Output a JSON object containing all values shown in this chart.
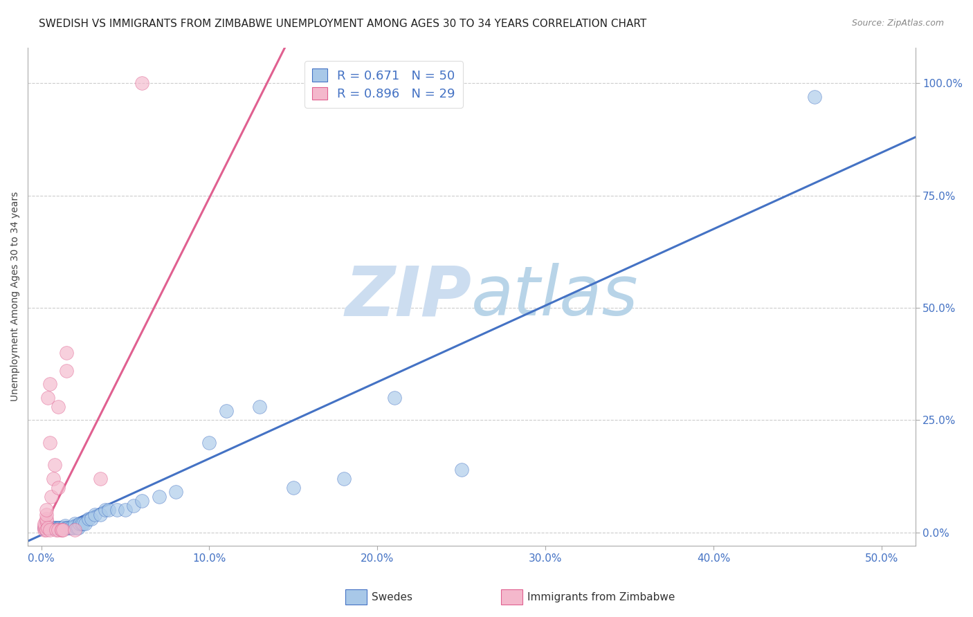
{
  "title": "SWEDISH VS IMMIGRANTS FROM ZIMBABWE UNEMPLOYMENT AMONG AGES 30 TO 34 YEARS CORRELATION CHART",
  "source": "Source: ZipAtlas.com",
  "xlabel_ticks": [
    0.0,
    0.1,
    0.2,
    0.3,
    0.4,
    0.5
  ],
  "ylabel_ticks": [
    0.0,
    0.25,
    0.5,
    0.75,
    1.0
  ],
  "xlabel_labels": [
    "0.0%",
    "10.0%",
    "20.0%",
    "30.0%",
    "40.0%",
    "50.0%"
  ],
  "ylabel_labels": [
    "0.0%",
    "25.0%",
    "50.0%",
    "75.0%",
    "100.0%"
  ],
  "ylabel_text": "Unemployment Among Ages 30 to 34 years",
  "legend_blue_R": "R = 0.671",
  "legend_blue_N": "N = 50",
  "legend_pink_R": "R = 0.896",
  "legend_pink_N": "N = 29",
  "legend_blue_label": "Swedes",
  "legend_pink_label": "Immigrants from Zimbabwe",
  "blue_color": "#a8c8e8",
  "pink_color": "#f4b8cc",
  "blue_line_color": "#4472c4",
  "pink_line_color": "#e06090",
  "tick_color": "#4472c4",
  "watermark_zip": "ZIP",
  "watermark_atlas": "atlas",
  "watermark_color": "#ddeeff",
  "blue_scatter_x": [
    0.002,
    0.003,
    0.004,
    0.005,
    0.005,
    0.006,
    0.007,
    0.008,
    0.008,
    0.009,
    0.01,
    0.01,
    0.011,
    0.011,
    0.012,
    0.013,
    0.014,
    0.015,
    0.015,
    0.016,
    0.017,
    0.018,
    0.019,
    0.02,
    0.021,
    0.022,
    0.023,
    0.024,
    0.025,
    0.026,
    0.028,
    0.03,
    0.032,
    0.035,
    0.038,
    0.04,
    0.045,
    0.05,
    0.055,
    0.06,
    0.07,
    0.08,
    0.1,
    0.11,
    0.13,
    0.15,
    0.18,
    0.21,
    0.25,
    0.46
  ],
  "blue_scatter_y": [
    0.01,
    0.01,
    0.01,
    0.01,
    0.01,
    0.01,
    0.01,
    0.01,
    0.01,
    0.01,
    0.01,
    0.01,
    0.01,
    0.01,
    0.01,
    0.01,
    0.015,
    0.01,
    0.01,
    0.01,
    0.01,
    0.01,
    0.01,
    0.02,
    0.01,
    0.01,
    0.02,
    0.02,
    0.02,
    0.02,
    0.03,
    0.03,
    0.04,
    0.04,
    0.05,
    0.05,
    0.05,
    0.05,
    0.06,
    0.07,
    0.08,
    0.09,
    0.2,
    0.27,
    0.28,
    0.1,
    0.12,
    0.3,
    0.14,
    0.97
  ],
  "pink_scatter_x": [
    0.002,
    0.002,
    0.002,
    0.002,
    0.003,
    0.003,
    0.003,
    0.003,
    0.003,
    0.004,
    0.004,
    0.005,
    0.005,
    0.005,
    0.006,
    0.007,
    0.008,
    0.009,
    0.01,
    0.01,
    0.01,
    0.012,
    0.012,
    0.013,
    0.015,
    0.015,
    0.02,
    0.035,
    0.06
  ],
  "pink_scatter_y": [
    0.005,
    0.01,
    0.015,
    0.02,
    0.025,
    0.03,
    0.04,
    0.05,
    0.005,
    0.01,
    0.3,
    0.33,
    0.2,
    0.005,
    0.08,
    0.12,
    0.15,
    0.005,
    0.1,
    0.28,
    0.005,
    0.005,
    0.005,
    0.005,
    0.36,
    0.4,
    0.005,
    0.12,
    1.0
  ],
  "blue_line_x": [
    -0.02,
    0.52
  ],
  "blue_line_y": [
    -0.04,
    0.88
  ],
  "pink_line_x": [
    0.0,
    0.145
  ],
  "pink_line_y": [
    0.0,
    1.08
  ],
  "xlim": [
    -0.008,
    0.52
  ],
  "ylim": [
    -0.03,
    1.08
  ],
  "title_fontsize": 11,
  "source_fontsize": 9,
  "axis_label_fontsize": 10,
  "tick_fontsize": 11,
  "legend_fontsize": 13
}
